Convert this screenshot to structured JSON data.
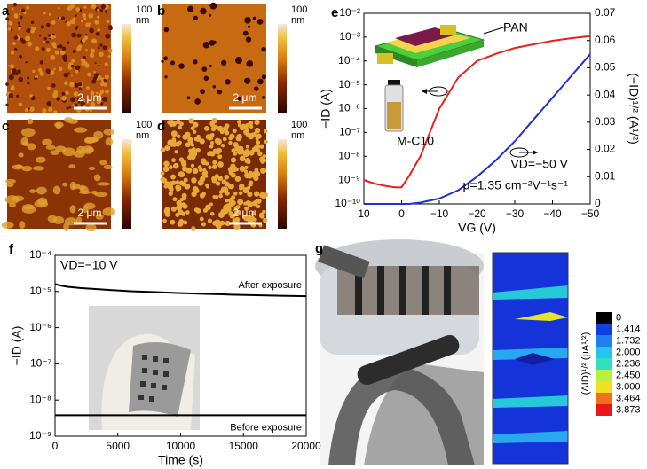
{
  "panels": [
    {
      "label": "a",
      "scale_bar": "2 μm",
      "colorbar_max": 100,
      "colorbar_unit": "nm"
    },
    {
      "label": "b",
      "scale_bar": "2 μm",
      "colorbar_max": 100,
      "colorbar_unit": "nm"
    },
    {
      "label": "c",
      "scale_bar": "2 μm",
      "colorbar_max": 100,
      "colorbar_unit": "nm"
    },
    {
      "label": "d",
      "scale_bar": "2 μm",
      "colorbar_max": 100,
      "colorbar_unit": "nm"
    }
  ],
  "chart_data": [
    {
      "type": "line",
      "panel": "e",
      "x_label": "VG (V)",
      "y_label": "−ID (A)",
      "y2_label": "(−ID)¹/² (A¹/²)",
      "x": [
        10,
        7,
        5,
        2,
        0,
        -2,
        -5,
        -10,
        -15,
        -20,
        -25,
        -30,
        -35,
        -40,
        -45,
        -50
      ],
      "series": [
        {
          "color": "#e8201e",
          "values": [
            1e-09,
            7e-10,
            6e-10,
            5e-10,
            5e-10,
            1.5e-09,
            1e-08,
            1e-06,
            2e-05,
            0.0001,
            0.0002,
            0.00035,
            0.0005,
            0.0007,
            0.0009,
            0.0011
          ]
        },
        {
          "color": "#1f2fd6",
          "axis": "y2",
          "values": [
            0,
            0,
            0,
            0,
            0,
            0,
            0.0005,
            0.002,
            0.005,
            0.01,
            0.016,
            0.023,
            0.031,
            0.039,
            0.047,
            0.055
          ]
        }
      ],
      "xlim": [
        10,
        -50
      ],
      "xticks": [
        10,
        0,
        {
          "value": -10,
          "label": "−10"
        },
        {
          "value": -20,
          "label": "−20"
        },
        {
          "value": -30,
          "label": "−30"
        },
        {
          "value": -40,
          "label": "−40"
        },
        {
          "value": -50,
          "label": "−50"
        }
      ],
      "log_y": true,
      "ylim": [
        1e-10,
        0.01
      ],
      "yticks": [
        {
          "value": 1e-10,
          "label": "10⁻¹⁰"
        },
        {
          "value": 1e-09,
          "label": "10⁻⁹"
        },
        {
          "value": 1e-08,
          "label": "10⁻⁸"
        },
        {
          "value": 1e-07,
          "label": "10⁻⁷"
        },
        {
          "value": 1e-06,
          "label": "10⁻⁶"
        },
        {
          "value": 1e-05,
          "label": "10⁻⁵"
        },
        {
          "value": 0.0001,
          "label": "10⁻⁴"
        },
        {
          "value": 0.001,
          "label": "10⁻³"
        },
        {
          "value": 0.01,
          "label": "10⁻²"
        }
      ],
      "y2lim": [
        0,
        0.07
      ],
      "y2ticks": [
        0,
        0.01,
        0.02,
        0.03,
        0.04,
        0.05,
        0.06,
        0.07
      ],
      "annotations": [
        "PAN",
        "M-C10",
        "VD=−50 V",
        "μ=1.35 cm⁻²V⁻¹s⁻¹"
      ]
    },
    {
      "type": "line",
      "panel": "f",
      "x_label": "Time (s)",
      "y_label": "−ID (A)",
      "x": [
        0,
        500,
        1000,
        2000,
        4000,
        6000,
        8000,
        10000,
        12000,
        14000,
        16000,
        18000,
        20000
      ],
      "series": [
        {
          "name": "After exposure",
          "color": "#000000",
          "values": [
            1.6e-05,
            1.45e-05,
            1.35e-05,
            1.25e-05,
            1.12e-05,
            1.02e-05,
            9.6e-06,
            9e-06,
            8.6e-06,
            8.2e-06,
            7.9e-06,
            7.6e-06,
            7.4e-06
          ]
        },
        {
          "name": "Before exposure",
          "color": "#000000",
          "values": [
            3.8e-09,
            3.8e-09,
            3.8e-09,
            3.8e-09,
            3.8e-09,
            3.8e-09,
            3.8e-09,
            3.8e-09,
            3.8e-09,
            3.8e-09,
            3.8e-09,
            3.8e-09,
            3.8e-09
          ]
        }
      ],
      "xlim": [
        0,
        20000
      ],
      "xticks": [
        0,
        5000,
        10000,
        15000,
        20000
      ],
      "log_y": true,
      "ylim": [
        1e-09,
        0.0001
      ],
      "yticks": [
        {
          "value": 1e-09,
          "label": "10⁻⁹"
        },
        {
          "value": 1e-08,
          "label": "10⁻⁸"
        },
        {
          "value": 1e-07,
          "label": "10⁻⁷"
        },
        {
          "value": 1e-06,
          "label": "10⁻⁶"
        },
        {
          "value": 1e-05,
          "label": "10⁻⁵"
        },
        {
          "value": 0.0001,
          "label": "10⁻⁴"
        }
      ],
      "annotations": [
        "VD=−10 V"
      ]
    }
  ],
  "panel_g": {
    "label": "g",
    "colorbar": {
      "title": "(ΔID)¹/² (μA¹/²)",
      "ticks": [
        0,
        1.414,
        1.732,
        {
          "value": 2,
          "label": "2.000"
        },
        2.236,
        {
          "value": 2.45,
          "label": "2.450"
        },
        {
          "value": 3,
          "label": "3.000"
        },
        3.464,
        3.873
      ]
    }
  }
}
